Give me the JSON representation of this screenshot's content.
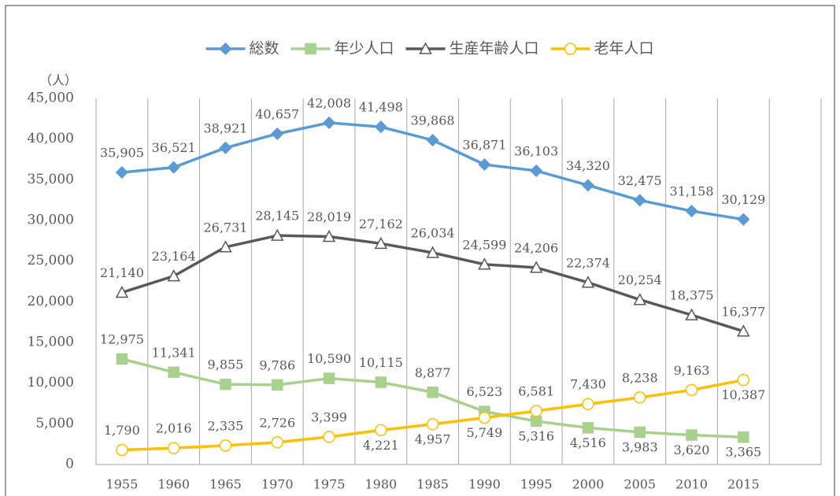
{
  "chart_data": {
    "type": "line",
    "y_unit_label": "（人）",
    "categories": [
      "1955",
      "1960",
      "1965",
      "1970",
      "1975",
      "1980",
      "1985",
      "1990",
      "1995",
      "2000",
      "2005",
      "2010",
      "2015",
      null
    ],
    "series": [
      {
        "name": "総数",
        "color": "#5b9bd5",
        "marker": "diamond",
        "values": [
          35905,
          36521,
          38921,
          40657,
          42008,
          41498,
          39868,
          36871,
          36103,
          34320,
          32475,
          31158,
          30129,
          null
        ],
        "value_labels": [
          "35,905",
          "36,521",
          "38,921",
          "40,657",
          "42,008",
          "41,498",
          "39,868",
          "36,871",
          "36,103",
          "34,320",
          "32,475",
          "31,158",
          "30,129",
          null
        ]
      },
      {
        "name": "年少人口",
        "color": "#a9d18e",
        "marker": "square",
        "values": [
          12975,
          11341,
          9855,
          9786,
          10590,
          10115,
          8877,
          6523,
          5316,
          4516,
          3983,
          3620,
          3365,
          null
        ],
        "value_labels": [
          "12,975",
          "11,341",
          "9,855",
          "9,786",
          "10,590",
          "10,115",
          "8,877",
          "6,523",
          "5,316",
          "4,516",
          "3,983",
          "3,620",
          "3,365",
          null
        ]
      },
      {
        "name": "生産年齢人口",
        "color": "#595959",
        "marker": "triangle",
        "values": [
          21140,
          23164,
          26731,
          28145,
          28019,
          27162,
          26034,
          24599,
          24206,
          22374,
          20254,
          18375,
          16377,
          null
        ],
        "value_labels": [
          "21,140",
          "23,164",
          "26,731",
          "28,145",
          "28,019",
          "27,162",
          "26,034",
          "24,599",
          "24,206",
          "22,374",
          "20,254",
          "18,375",
          "16,377",
          null
        ]
      },
      {
        "name": "老年人口",
        "color": "#ffc000",
        "marker": "circle",
        "values": [
          1790,
          2016,
          2335,
          2726,
          3399,
          4221,
          4957,
          5749,
          6581,
          7430,
          8238,
          9163,
          10387,
          null
        ],
        "value_labels": [
          "1,790",
          "2,016",
          "2,335",
          "2,726",
          "3,399",
          "4,221",
          "4,957",
          "5,749",
          "6,581",
          "7,430",
          "8,238",
          "9,163",
          "10,387",
          null
        ]
      }
    ],
    "ylim": [
      0,
      45000
    ],
    "yticks": [
      0,
      {
        "value": 5000,
        "label": "5,000"
      },
      {
        "value": 10000,
        "label": "10,000"
      },
      {
        "value": 15000,
        "label": "15,000"
      },
      {
        "value": 20000,
        "label": "20,000"
      },
      {
        "value": 25000,
        "label": "25,000"
      },
      {
        "value": 30000,
        "label": "30,000"
      },
      {
        "value": 35000,
        "label": "35,000"
      },
      {
        "value": 40000,
        "label": "40,000"
      },
      {
        "value": 45000,
        "label": "45,000"
      }
    ],
    "vertical_grid": true,
    "legend_position": "top"
  }
}
